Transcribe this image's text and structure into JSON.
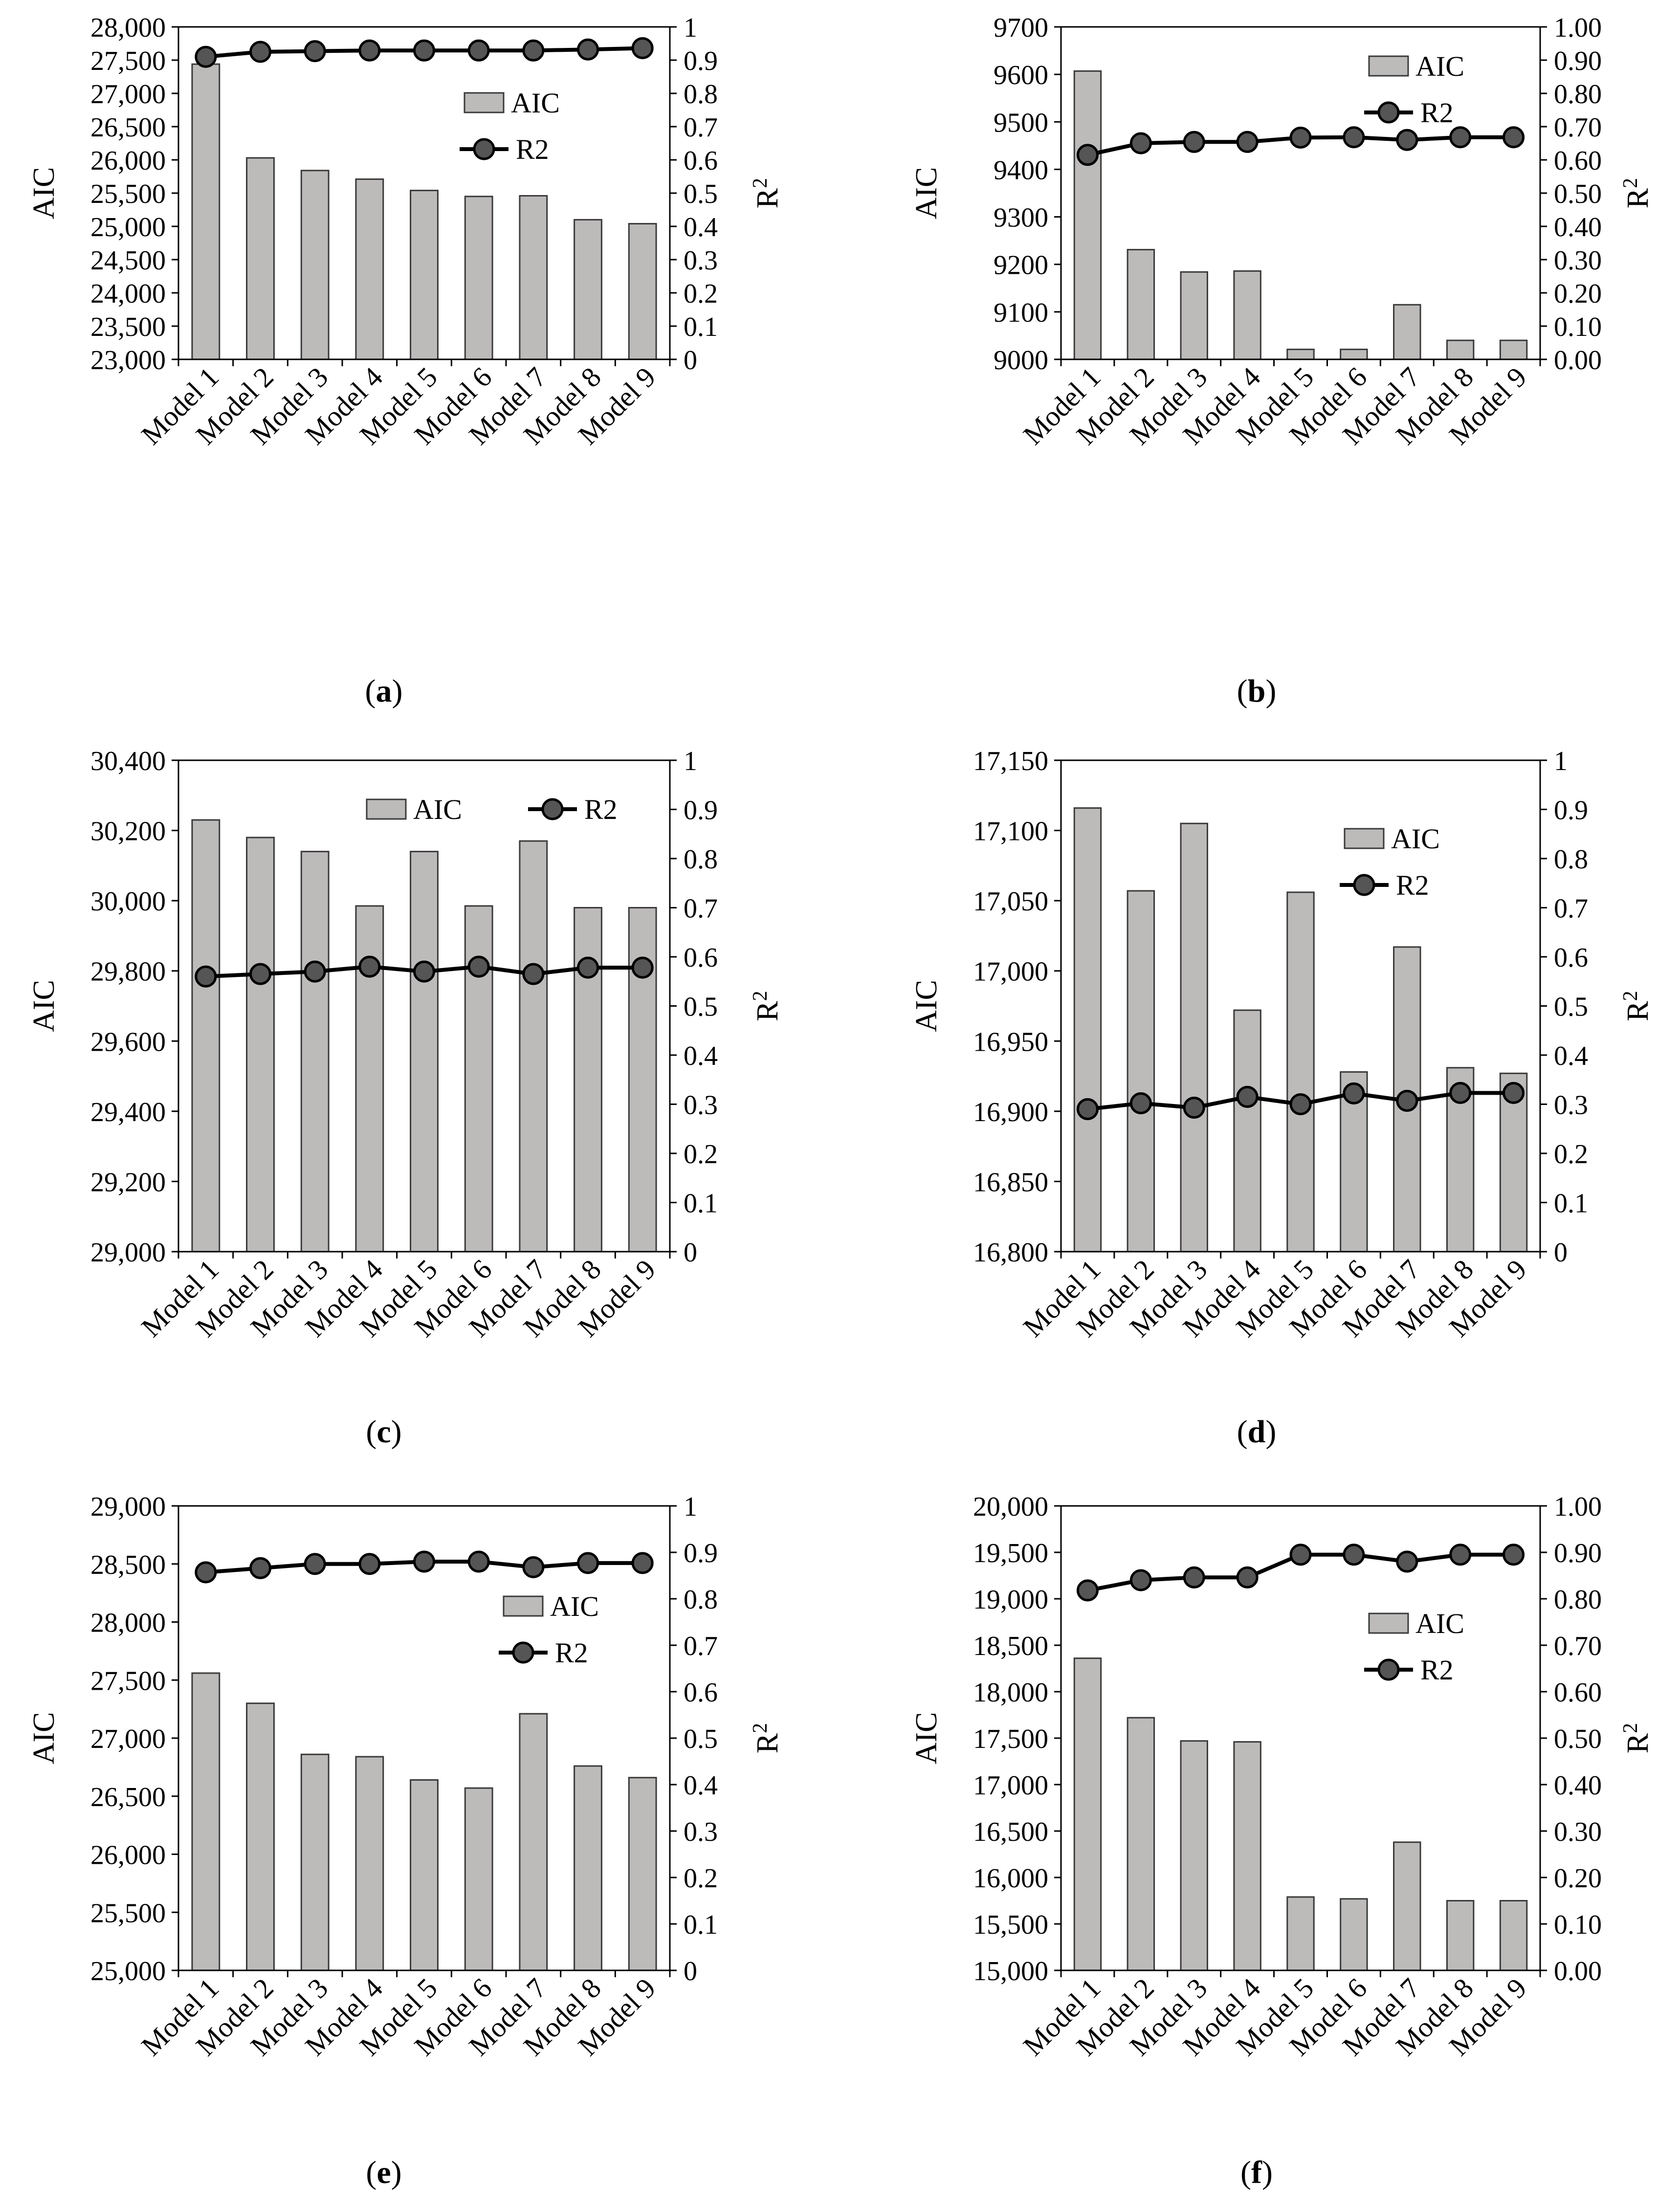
{
  "figure": {
    "colors": {
      "bar_fill": "#bdbaba",
      "bar_edge": "#3a3a3a",
      "line": "#000000",
      "marker": "#555555"
    },
    "legend_bar_label": "AIC",
    "legend_line_label": "R2"
  },
  "chart_data": [
    {
      "id": "a",
      "type": "bar",
      "secondary_type": "line",
      "caption_letter": "a",
      "categories": [
        "Model 1",
        "Model 2",
        "Model 3",
        "Model 4",
        "Model 5",
        "Model 6",
        "Model 7",
        "Model 8",
        "Model 9"
      ],
      "series": [
        {
          "name": "AIC",
          "axis": "left",
          "type": "bar",
          "values": [
            27440,
            26030,
            25840,
            25710,
            25540,
            25450,
            25460,
            25100,
            25040
          ]
        },
        {
          "name": "R2",
          "axis": "right",
          "type": "line",
          "values": [
            0.91,
            0.925,
            0.927,
            0.929,
            0.929,
            0.929,
            0.929,
            0.932,
            0.936
          ]
        }
      ],
      "ylabel": "AIC",
      "y2label": "R2",
      "ylim": [
        23000,
        28000
      ],
      "yticks": [
        "23,000",
        "23,500",
        "24,000",
        "24,500",
        "25,000",
        "25,500",
        "26,000",
        "26,500",
        "27,000",
        "27,500",
        "28,000"
      ],
      "y2lim": [
        0,
        1
      ],
      "y2ticks": [
        "0",
        "0.1",
        "0.2",
        "0.3",
        "0.4",
        "0.5",
        "0.6",
        "0.7",
        "0.8",
        "0.9",
        "1"
      ],
      "legend_position": "right"
    },
    {
      "id": "b",
      "type": "bar",
      "secondary_type": "line",
      "caption_letter": "b",
      "categories": [
        "Model 1",
        "Model 2",
        "Model 3",
        "Model 4",
        "Model 5",
        "Model 6",
        "Model 7",
        "Model 8",
        "Model 9"
      ],
      "series": [
        {
          "name": "AIC",
          "axis": "left",
          "type": "bar",
          "values": [
            9607,
            9231,
            9184,
            9186,
            9021,
            9021,
            9115,
            9040,
            9040
          ]
        },
        {
          "name": "R2",
          "axis": "right",
          "type": "line",
          "values": [
            0.615,
            0.65,
            0.654,
            0.654,
            0.667,
            0.668,
            0.66,
            0.668,
            0.668
          ]
        }
      ],
      "ylabel": "AIC",
      "y2label": "R2",
      "ylim": [
        9000,
        9700
      ],
      "yticks": [
        "9000",
        "9100",
        "9200",
        "9300",
        "9400",
        "9500",
        "9600",
        "9700"
      ],
      "y2lim": [
        0,
        1
      ],
      "y2ticks": [
        "0.00",
        "0.10",
        "0.20",
        "0.30",
        "0.40",
        "0.50",
        "0.60",
        "0.70",
        "0.80",
        "0.90",
        "1.00"
      ],
      "legend_position": "top-right"
    },
    {
      "id": "c",
      "type": "bar",
      "secondary_type": "line",
      "caption_letter": "c",
      "categories": [
        "Model 1",
        "Model 2",
        "Model 3",
        "Model 4",
        "Model 5",
        "Model 6",
        "Model 7",
        "Model 8",
        "Model 9"
      ],
      "series": [
        {
          "name": "AIC",
          "axis": "left",
          "type": "bar",
          "values": [
            30230,
            30180,
            30140,
            29985,
            30140,
            29985,
            30170,
            29980,
            29980
          ]
        },
        {
          "name": "R2",
          "axis": "right",
          "type": "line",
          "values": [
            0.56,
            0.565,
            0.57,
            0.58,
            0.57,
            0.58,
            0.565,
            0.578,
            0.578
          ]
        }
      ],
      "ylabel": "AIC",
      "y2label": "R2",
      "ylim": [
        29000,
        30400
      ],
      "yticks": [
        "29,000",
        "29,200",
        "29,400",
        "29,600",
        "29,800",
        "30,000",
        "30,200",
        "30,400"
      ],
      "y2lim": [
        0,
        1
      ],
      "y2ticks": [
        "0",
        "0.1",
        "0.2",
        "0.3",
        "0.4",
        "0.5",
        "0.6",
        "0.7",
        "0.8",
        "0.9",
        "1"
      ],
      "legend_position": "top-right"
    },
    {
      "id": "d",
      "type": "bar",
      "secondary_type": "line",
      "caption_letter": "d",
      "categories": [
        "Model 1",
        "Model 2",
        "Model 3",
        "Model 4",
        "Model 5",
        "Model 6",
        "Model 7",
        "Model 8",
        "Model 9"
      ],
      "series": [
        {
          "name": "AIC",
          "axis": "left",
          "type": "bar",
          "values": [
            17116,
            17057,
            17105,
            16972,
            17056,
            16928,
            17017,
            16931,
            16927
          ]
        },
        {
          "name": "R2",
          "axis": "right",
          "type": "line",
          "values": [
            0.29,
            0.302,
            0.293,
            0.315,
            0.3,
            0.322,
            0.307,
            0.323,
            0.323
          ]
        }
      ],
      "ylabel": "AIC",
      "y2label": "R2",
      "ylim": [
        16800,
        17150
      ],
      "yticks": [
        "16,800",
        "16,850",
        "16,900",
        "16,950",
        "17,000",
        "17,050",
        "17,100",
        "17,150"
      ],
      "y2lim": [
        0,
        1
      ],
      "y2ticks": [
        "0",
        "0.1",
        "0.2",
        "0.3",
        "0.4",
        "0.5",
        "0.6",
        "0.7",
        "0.8",
        "0.9",
        "1"
      ],
      "legend_position": "right"
    },
    {
      "id": "e",
      "type": "bar",
      "secondary_type": "line",
      "caption_letter": "e",
      "categories": [
        "Model 1",
        "Model 2",
        "Model 3",
        "Model 4",
        "Model 5",
        "Model 6",
        "Model 7",
        "Model 8",
        "Model 9"
      ],
      "series": [
        {
          "name": "AIC",
          "axis": "left",
          "type": "bar",
          "values": [
            27560,
            27300,
            26860,
            26840,
            26640,
            26570,
            27210,
            26760,
            26660
          ]
        },
        {
          "name": "R2",
          "axis": "right",
          "type": "line",
          "values": [
            0.857,
            0.866,
            0.875,
            0.875,
            0.88,
            0.88,
            0.868,
            0.877,
            0.877
          ]
        }
      ],
      "ylabel": "AIC",
      "y2label": "R2",
      "ylim": [
        25000,
        29000
      ],
      "yticks": [
        "25,000",
        "25,500",
        "26,000",
        "26,500",
        "27,000",
        "27,500",
        "28,000",
        "28,500",
        "29,000"
      ],
      "y2lim": [
        0,
        1
      ],
      "y2ticks": [
        "0",
        "0.1",
        "0.2",
        "0.3",
        "0.4",
        "0.5",
        "0.6",
        "0.7",
        "0.8",
        "0.9",
        "1"
      ],
      "legend_position": "right"
    },
    {
      "id": "f",
      "type": "bar",
      "secondary_type": "line",
      "caption_letter": "f",
      "categories": [
        "Model 1",
        "Model 2",
        "Model 3",
        "Model 4",
        "Model 5",
        "Model 6",
        "Model 7",
        "Model 8",
        "Model 9"
      ],
      "series": [
        {
          "name": "AIC",
          "axis": "left",
          "type": "bar",
          "values": [
            18360,
            17720,
            17470,
            17460,
            15790,
            15770,
            16380,
            15750,
            15750
          ]
        },
        {
          "name": "R2",
          "axis": "right",
          "type": "line",
          "values": [
            0.818,
            0.84,
            0.846,
            0.846,
            0.895,
            0.895,
            0.88,
            0.895,
            0.895
          ]
        }
      ],
      "ylabel": "AIC",
      "y2label": "R2",
      "ylim": [
        15000,
        20000
      ],
      "yticks": [
        "15,000",
        "15,500",
        "16,000",
        "16,500",
        "17,000",
        "17,500",
        "18,000",
        "18,500",
        "19,000",
        "19,500",
        "20,000"
      ],
      "y2lim": [
        0,
        1
      ],
      "y2ticks": [
        "0.00",
        "0.10",
        "0.20",
        "0.30",
        "0.40",
        "0.50",
        "0.60",
        "0.70",
        "0.80",
        "0.90",
        "1.00"
      ],
      "legend_position": "right"
    }
  ]
}
